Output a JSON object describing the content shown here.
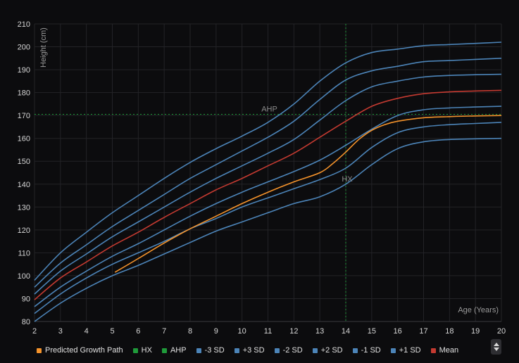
{
  "chart_data": {
    "type": "line",
    "xlabel": "Age (Years)",
    "ylabel": "Height (cm)",
    "xlim": [
      2,
      20
    ],
    "ylim": [
      80,
      210
    ],
    "x_ticks": [
      2,
      3,
      4,
      5,
      6,
      7,
      8,
      9,
      10,
      11,
      12,
      13,
      14,
      15,
      16,
      17,
      18,
      19,
      20
    ],
    "y_ticks": [
      80,
      90,
      100,
      110,
      120,
      130,
      140,
      150,
      160,
      170,
      180,
      190,
      200,
      210
    ],
    "grid": true,
    "legend_position": "bottom",
    "reference_lines": [
      {
        "name": "AHP",
        "orientation": "horizontal",
        "value": 170.5,
        "label": "AHP",
        "color": "#1f9a3a"
      },
      {
        "name": "HX",
        "orientation": "vertical",
        "value": 14,
        "label": "HX",
        "color": "#1f9a3a"
      }
    ],
    "annotations": [
      {
        "text": "AHP",
        "x": 11,
        "y": 170.5
      },
      {
        "text": "HX",
        "x": 14,
        "y": 140
      }
    ],
    "x": [
      2,
      3,
      4,
      5,
      6,
      7,
      8,
      9,
      10,
      11,
      12,
      13,
      14,
      15,
      16,
      17,
      18,
      19,
      20
    ],
    "series": [
      {
        "name": "Predicted Growth Path",
        "color": "#f5932b",
        "x": [
          5.1,
          6,
          7,
          8,
          9,
          10,
          11,
          12,
          13,
          13.5,
          14,
          14.5,
          15,
          15.5,
          16,
          17,
          18,
          19,
          20
        ],
        "values": [
          101.5,
          107.5,
          114.3,
          120.5,
          126,
          131.5,
          136.5,
          141,
          145,
          149,
          154,
          159.5,
          163.5,
          166,
          167.5,
          169,
          169.5,
          169.8,
          170
        ]
      },
      {
        "name": "HX",
        "color": "#1f9a3a"
      },
      {
        "name": "AHP",
        "color": "#1f9a3a"
      },
      {
        "name": "-3 SD",
        "color": "#4c84b8",
        "values": [
          80,
          88,
          94.5,
          100,
          104.5,
          109.5,
          114.5,
          119.5,
          123.5,
          127.5,
          131.5,
          134.5,
          140,
          148.5,
          155.5,
          158.5,
          159.5,
          159.8,
          160
        ]
      },
      {
        "name": "+3 SD",
        "color": "#4c84b8",
        "values": [
          98,
          110,
          119,
          127.5,
          135,
          142.5,
          149.5,
          155.5,
          161,
          167,
          175,
          185,
          193,
          197.5,
          199,
          200.5,
          201,
          201.5,
          202
        ]
      },
      {
        "name": "-2 SD",
        "color": "#4c84b8",
        "values": [
          83.5,
          92,
          99,
          105,
          110,
          115,
          120.5,
          125,
          130,
          134,
          138,
          142,
          147,
          156,
          162.5,
          165,
          166,
          166.5,
          167
        ]
      },
      {
        "name": "+2 SD",
        "color": "#4c84b8",
        "values": [
          95,
          105.5,
          113.5,
          121.5,
          128.5,
          135.5,
          142.5,
          148.5,
          154.5,
          160.5,
          167.5,
          177,
          185.5,
          189.5,
          191.5,
          193.5,
          194,
          194.5,
          195
        ]
      },
      {
        "name": "-1 SD",
        "color": "#4c84b8",
        "values": [
          86.5,
          95,
          102,
          108.5,
          114,
          120,
          126,
          131.5,
          136.5,
          141,
          145.5,
          150.5,
          157,
          164,
          170,
          172.5,
          173.3,
          173.7,
          174
        ]
      },
      {
        "name": "+1 SD",
        "color": "#4c84b8",
        "values": [
          92,
          102,
          109.5,
          117,
          123.5,
          130,
          136.5,
          142.5,
          148,
          153.5,
          159.5,
          168,
          176.5,
          182.5,
          185,
          186.8,
          187.5,
          187.8,
          188
        ]
      },
      {
        "name": "Mean",
        "color": "#c43a31",
        "values": [
          89.5,
          99,
          106,
          113,
          119,
          125.5,
          131.5,
          137.5,
          142.5,
          148,
          153.5,
          160.5,
          167.5,
          174,
          177.5,
          179.5,
          180.3,
          180.7,
          181
        ]
      }
    ]
  },
  "controls": {
    "legend_scroll": "legend-scroll"
  }
}
